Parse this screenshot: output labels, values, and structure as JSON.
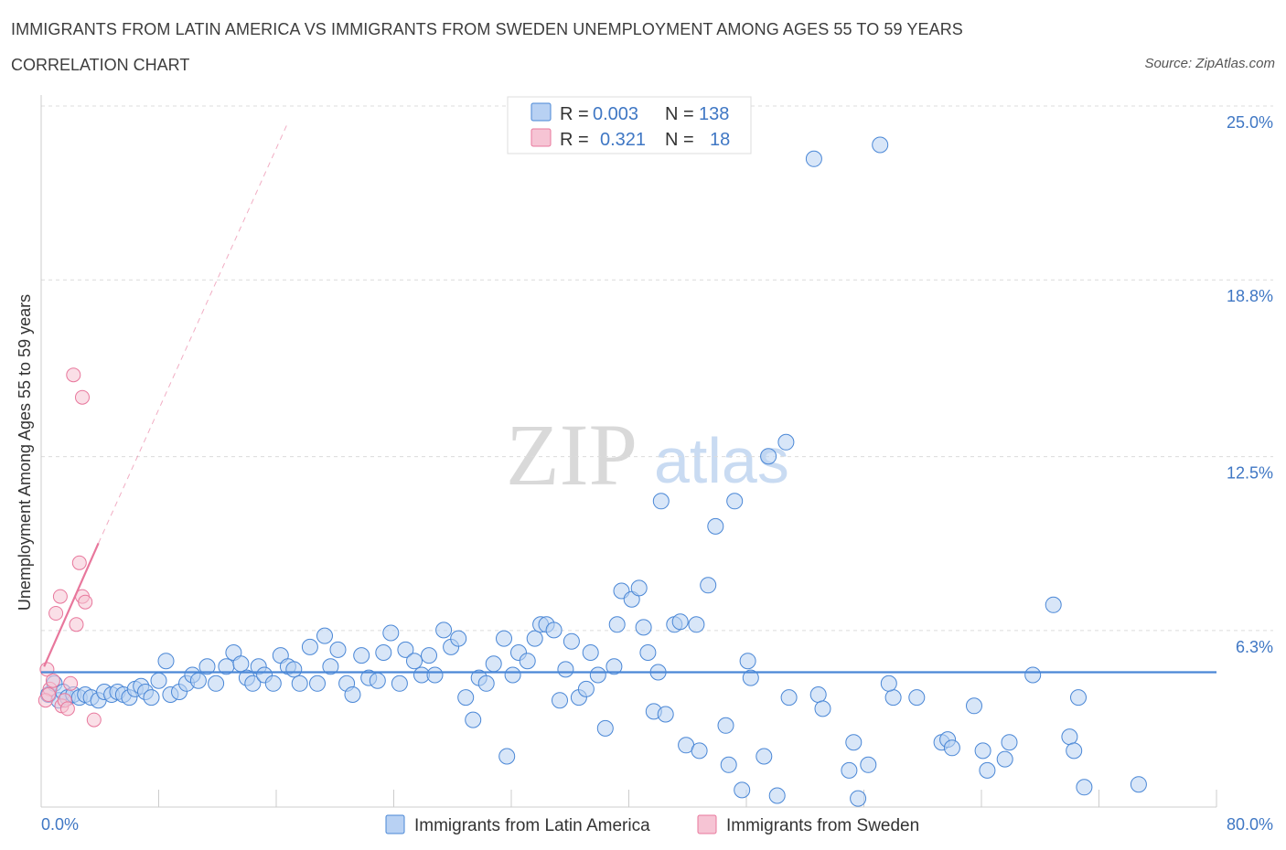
{
  "header": {
    "title": "IMMIGRANTS FROM LATIN AMERICA VS IMMIGRANTS FROM SWEDEN UNEMPLOYMENT AMONG AGES 55 TO 59 YEARS",
    "subtitle": "CORRELATION CHART",
    "source": "Source: ZipAtlas.com"
  },
  "watermark": {
    "zip": "ZIP",
    "atlas": "atlas"
  },
  "legend": {
    "rows": [
      {
        "r_label": "R =",
        "r_value": "0.003",
        "n_label": "N =",
        "n_value": "138"
      },
      {
        "r_label": "R =",
        "r_value": "0.321",
        "n_label": "N =",
        "n_value": "18"
      }
    ]
  },
  "colors": {
    "blue": "#4a87d6",
    "blue_fill": "#b8d1f3",
    "pink": "#e8779c",
    "pink_fill": "#f6c4d4",
    "accent_text": "#3f77c4"
  },
  "chart_data": {
    "type": "scatter",
    "title": "IMMIGRANTS FROM LATIN AMERICA VS IMMIGRANTS FROM SWEDEN UNEMPLOYMENT AMONG AGES 55 TO 59 YEARS",
    "xlabel": "",
    "ylabel": "Unemployment Among Ages 55 to 59 years",
    "xlim": [
      0,
      80
    ],
    "ylim": [
      0,
      25
    ],
    "x_tick_labels": [
      "0.0%",
      "80.0%"
    ],
    "y_ticks": [
      6.3,
      12.5,
      18.8,
      25.0
    ],
    "y_tick_labels": [
      "6.3%",
      "12.5%",
      "18.8%",
      "25.0%"
    ],
    "grid": true,
    "legend_position": "top-center",
    "series": [
      {
        "name": "Immigrants from Latin America",
        "color": "#4a87d6",
        "trend": {
          "x": [
            0,
            80
          ],
          "y": [
            5.4,
            5.4
          ]
        },
        "points": [
          [
            0.5,
            4.6
          ],
          [
            0.9,
            5.0
          ],
          [
            1.2,
            4.4
          ],
          [
            1.5,
            4.7
          ],
          [
            1.8,
            4.5
          ],
          [
            2.2,
            4.6
          ],
          [
            2.6,
            4.5
          ],
          [
            3.0,
            4.6
          ],
          [
            3.4,
            4.5
          ],
          [
            3.9,
            4.4
          ],
          [
            4.3,
            4.7
          ],
          [
            4.8,
            4.6
          ],
          [
            5.2,
            4.7
          ],
          [
            5.6,
            4.6
          ],
          [
            6.0,
            4.5
          ],
          [
            6.4,
            4.8
          ],
          [
            6.8,
            4.9
          ],
          [
            7.1,
            4.7
          ],
          [
            7.5,
            4.5
          ],
          [
            8.0,
            5.1
          ],
          [
            8.5,
            5.8
          ],
          [
            8.8,
            4.6
          ],
          [
            9.4,
            4.7
          ],
          [
            9.9,
            5.0
          ],
          [
            10.3,
            5.3
          ],
          [
            10.7,
            5.1
          ],
          [
            11.3,
            5.6
          ],
          [
            11.9,
            5.0
          ],
          [
            12.6,
            5.6
          ],
          [
            13.1,
            6.1
          ],
          [
            13.6,
            5.7
          ],
          [
            14.0,
            5.2
          ],
          [
            14.4,
            5.0
          ],
          [
            14.8,
            5.6
          ],
          [
            15.2,
            5.3
          ],
          [
            15.8,
            5.0
          ],
          [
            16.3,
            6.0
          ],
          [
            16.8,
            5.6
          ],
          [
            17.2,
            5.5
          ],
          [
            17.6,
            5.0
          ],
          [
            18.3,
            6.3
          ],
          [
            18.8,
            5.0
          ],
          [
            19.3,
            6.7
          ],
          [
            19.7,
            5.6
          ],
          [
            20.2,
            6.2
          ],
          [
            20.8,
            5.0
          ],
          [
            21.2,
            4.6
          ],
          [
            21.8,
            6.0
          ],
          [
            22.3,
            5.2
          ],
          [
            22.9,
            5.1
          ],
          [
            23.3,
            6.1
          ],
          [
            23.8,
            6.8
          ],
          [
            24.4,
            5.0
          ],
          [
            24.8,
            6.2
          ],
          [
            25.4,
            5.8
          ],
          [
            25.9,
            5.3
          ],
          [
            26.4,
            6.0
          ],
          [
            26.8,
            5.3
          ],
          [
            27.4,
            6.9
          ],
          [
            27.9,
            6.3
          ],
          [
            28.4,
            6.6
          ],
          [
            28.9,
            4.5
          ],
          [
            29.4,
            3.7
          ],
          [
            29.8,
            5.2
          ],
          [
            30.3,
            5.0
          ],
          [
            30.8,
            5.7
          ],
          [
            31.5,
            6.6
          ],
          [
            32.1,
            5.3
          ],
          [
            32.5,
            6.1
          ],
          [
            33.1,
            5.8
          ],
          [
            33.6,
            6.6
          ],
          [
            34.0,
            7.1
          ],
          [
            34.4,
            7.1
          ],
          [
            34.9,
            6.9
          ],
          [
            35.3,
            4.4
          ],
          [
            35.7,
            5.5
          ],
          [
            36.1,
            6.5
          ],
          [
            36.6,
            4.5
          ],
          [
            37.1,
            4.8
          ],
          [
            37.4,
            6.1
          ],
          [
            37.9,
            5.3
          ],
          [
            38.4,
            3.4
          ],
          [
            39.0,
            5.6
          ],
          [
            39.2,
            7.1
          ],
          [
            39.5,
            8.3
          ],
          [
            40.2,
            8.0
          ],
          [
            40.7,
            8.4
          ],
          [
            41.0,
            7.0
          ],
          [
            41.3,
            6.1
          ],
          [
            41.7,
            4.0
          ],
          [
            42.0,
            5.4
          ],
          [
            42.5,
            3.9
          ],
          [
            43.1,
            7.1
          ],
          [
            43.5,
            7.2
          ],
          [
            43.9,
            2.8
          ],
          [
            44.6,
            7.1
          ],
          [
            44.8,
            2.6
          ],
          [
            45.4,
            8.5
          ],
          [
            45.9,
            10.6
          ],
          [
            46.6,
            3.5
          ],
          [
            46.8,
            2.1
          ],
          [
            47.7,
            1.2
          ],
          [
            48.1,
            5.8
          ],
          [
            48.3,
            5.2
          ],
          [
            49.2,
            2.4
          ],
          [
            49.5,
            13.1
          ],
          [
            50.1,
            1.0
          ],
          [
            50.7,
            13.6
          ],
          [
            50.9,
            4.5
          ],
          [
            52.6,
            23.7
          ],
          [
            52.9,
            4.6
          ],
          [
            53.2,
            4.1
          ],
          [
            55.0,
            1.9
          ],
          [
            55.3,
            2.9
          ],
          [
            55.6,
            0.9
          ],
          [
            56.3,
            2.1
          ],
          [
            57.1,
            24.2
          ],
          [
            58.0,
            4.5
          ],
          [
            59.6,
            4.5
          ],
          [
            61.3,
            2.9
          ],
          [
            61.7,
            3.0
          ],
          [
            62.0,
            2.7
          ],
          [
            63.5,
            4.2
          ],
          [
            64.1,
            2.6
          ],
          [
            64.4,
            1.9
          ],
          [
            65.6,
            2.3
          ],
          [
            65.9,
            2.9
          ],
          [
            67.5,
            5.3
          ],
          [
            68.9,
            7.8
          ],
          [
            70.0,
            3.1
          ],
          [
            70.3,
            2.6
          ],
          [
            70.6,
            4.5
          ],
          [
            71.0,
            1.3
          ],
          [
            74.7,
            1.4
          ],
          [
            47.2,
            11.5
          ],
          [
            42.2,
            11.5
          ],
          [
            31.7,
            2.4
          ],
          [
            57.7,
            5.0
          ]
        ]
      },
      {
        "name": "Immigrants from Sweden",
        "color": "#e8779c",
        "trend": {
          "x": [
            0.2,
            3.9
          ],
          "y": [
            5.6,
            10.0
          ],
          "dashed_extension": {
            "x": [
              3.9,
              16.8
            ],
            "y": [
              10.0,
              25.0
            ]
          }
        },
        "points": [
          [
            0.4,
            5.5
          ],
          [
            0.6,
            4.8
          ],
          [
            0.8,
            5.1
          ],
          [
            1.0,
            7.5
          ],
          [
            1.3,
            8.1
          ],
          [
            1.4,
            4.2
          ],
          [
            1.6,
            4.4
          ],
          [
            1.8,
            4.1
          ],
          [
            2.0,
            5.0
          ],
          [
            2.2,
            16.0
          ],
          [
            2.4,
            7.1
          ],
          [
            2.6,
            9.3
          ],
          [
            2.8,
            8.1
          ],
          [
            3.0,
            7.9
          ],
          [
            3.6,
            3.7
          ],
          [
            0.3,
            4.4
          ],
          [
            0.5,
            4.6
          ],
          [
            2.8,
            15.2
          ]
        ]
      }
    ]
  },
  "bottom_legend": {
    "items": [
      {
        "label": "Immigrants from Latin America"
      },
      {
        "label": "Immigrants from Sweden"
      }
    ]
  }
}
